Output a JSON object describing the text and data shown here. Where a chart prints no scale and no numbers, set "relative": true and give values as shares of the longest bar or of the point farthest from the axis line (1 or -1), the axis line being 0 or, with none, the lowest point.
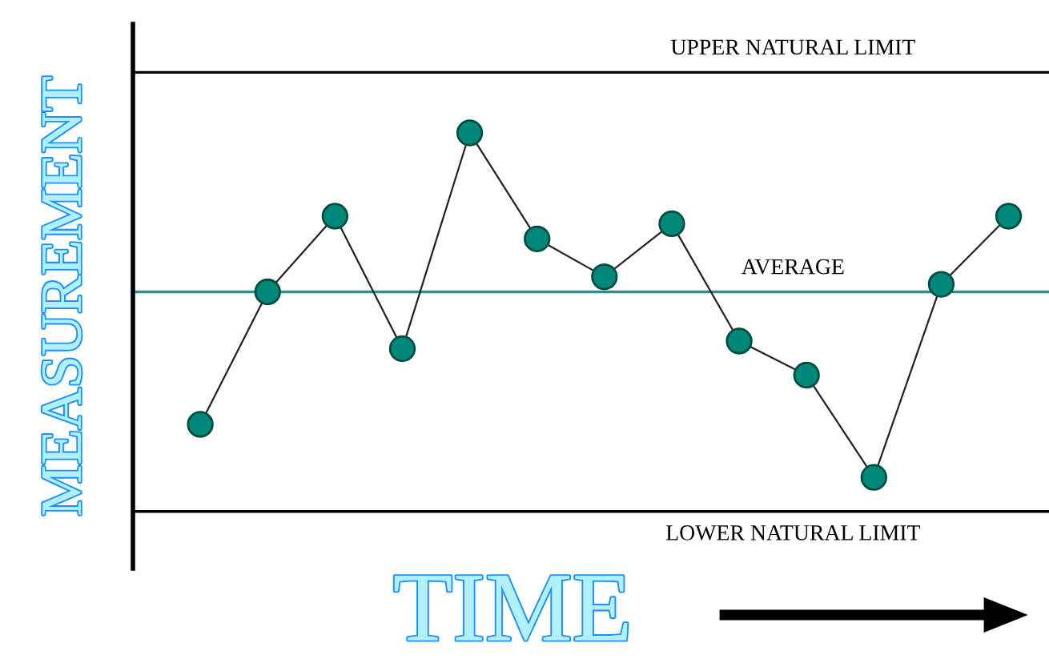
{
  "chart_data": {
    "type": "line",
    "relative": true,
    "xlabel": "TIME",
    "ylabel": "MEASUREMENT",
    "categories": [
      null,
      null,
      null,
      null,
      null,
      null,
      null,
      null,
      null,
      null,
      null,
      null,
      null
    ],
    "series": [
      {
        "color": "#222222",
        "colors": [
          "#00897b",
          "#00897b",
          "#00897b",
          "#00897b",
          "#00897b",
          "#00897b",
          "#00897b",
          "#00897b",
          "#00897b",
          "#00897b",
          "#00897b",
          "#00897b",
          "#00897b"
        ],
        "values": [
          0.23,
          0.58,
          0.78,
          0.43,
          1.0,
          0.72,
          0.62,
          0.76,
          0.45,
          0.36,
          0.09,
          0.6,
          0.78
        ]
      }
    ],
    "marker": "circle",
    "line_style": "solid",
    "grid": false,
    "legend": false,
    "ref_lines": [
      {
        "axis": "y",
        "value": 1.16,
        "label": "UPPER NATURAL LIMIT",
        "color": "#000000"
      },
      {
        "axis": "y",
        "value": 0.58,
        "label": "AVERAGE",
        "color": "#1a9a8a"
      },
      {
        "axis": "y",
        "value": 0,
        "label": "LOWER NATURAL LIMIT",
        "color": "#000000"
      }
    ]
  }
}
